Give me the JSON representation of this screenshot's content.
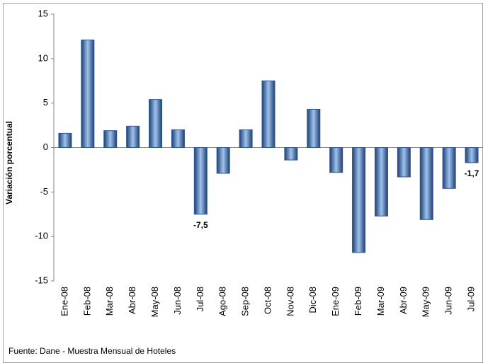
{
  "chart_data": {
    "type": "bar",
    "y_label": "Variación porcentual",
    "source": "Fuente: Dane - Muestra Mensual de Hoteles",
    "categories": [
      "Ene-08",
      "Feb-08",
      "Mar-08",
      "Abr-08",
      "May-08",
      "Jun-08",
      "Jul-08",
      "Ago-08",
      "Sep-08",
      "Oct-08",
      "Nov-08",
      "Dic-08",
      "Ene-09",
      "Feb-09",
      "Mar-09",
      "Abr-09",
      "May-09",
      "Jun-09",
      "Jul-09"
    ],
    "values": [
      1.6,
      12.1,
      1.9,
      2.4,
      5.4,
      2.0,
      -7.5,
      -2.9,
      2.0,
      7.5,
      -1.4,
      4.3,
      -2.8,
      -11.8,
      -7.7,
      -3.3,
      -8.1,
      -4.6,
      -1.7
    ],
    "value_labels": [
      null,
      null,
      null,
      null,
      null,
      null,
      "-7,5",
      null,
      null,
      null,
      null,
      null,
      null,
      null,
      null,
      null,
      null,
      null,
      "-1,7"
    ],
    "color": "#2f5597",
    "ylim": [
      -15,
      15
    ],
    "yticks": [
      -15,
      -10,
      -5,
      0,
      5,
      10,
      15
    ],
    "grid": false
  }
}
